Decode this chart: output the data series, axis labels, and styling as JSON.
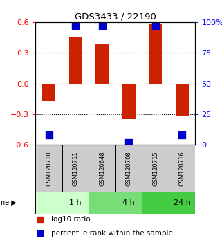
{
  "title": "GDS3433 / 22190",
  "samples": [
    "GSM120710",
    "GSM120711",
    "GSM120648",
    "GSM120708",
    "GSM120715",
    "GSM120716"
  ],
  "log10_ratio": [
    -0.17,
    0.45,
    0.38,
    -0.35,
    0.58,
    -0.31
  ],
  "percentile_rank": [
    8,
    97,
    97,
    2,
    97,
    8
  ],
  "bar_color": "#cc2200",
  "dot_color": "#0000cc",
  "left_ylim": [
    -0.6,
    0.6
  ],
  "right_ylim": [
    0,
    100
  ],
  "left_yticks": [
    -0.6,
    -0.3,
    0,
    0.3,
    0.6
  ],
  "right_yticks": [
    0,
    25,
    50,
    75,
    100
  ],
  "right_yticklabels": [
    "0",
    "25",
    "50",
    "75",
    "100%"
  ],
  "hline_positions": [
    -0.3,
    0.0,
    0.3
  ],
  "hline_colors": [
    "black",
    "#cc0000",
    "black"
  ],
  "hline_styles": [
    "dotted",
    "dotted",
    "dotted"
  ],
  "time_groups": [
    {
      "label": "1 h",
      "start": 0,
      "end": 2,
      "color": "#ccffcc"
    },
    {
      "label": "4 h",
      "start": 2,
      "end": 4,
      "color": "#77dd77"
    },
    {
      "label": "24 h",
      "start": 4,
      "end": 6,
      "color": "#44cc44"
    }
  ],
  "bar_width": 0.5,
  "dot_size": 45,
  "legend_items": [
    {
      "label": "log10 ratio",
      "color": "#cc2200",
      "marker": "s"
    },
    {
      "label": "percentile rank within the sample",
      "color": "#0000cc",
      "marker": "s"
    }
  ],
  "bg_color": "#ffffff",
  "sample_cell_color": "#cccccc"
}
